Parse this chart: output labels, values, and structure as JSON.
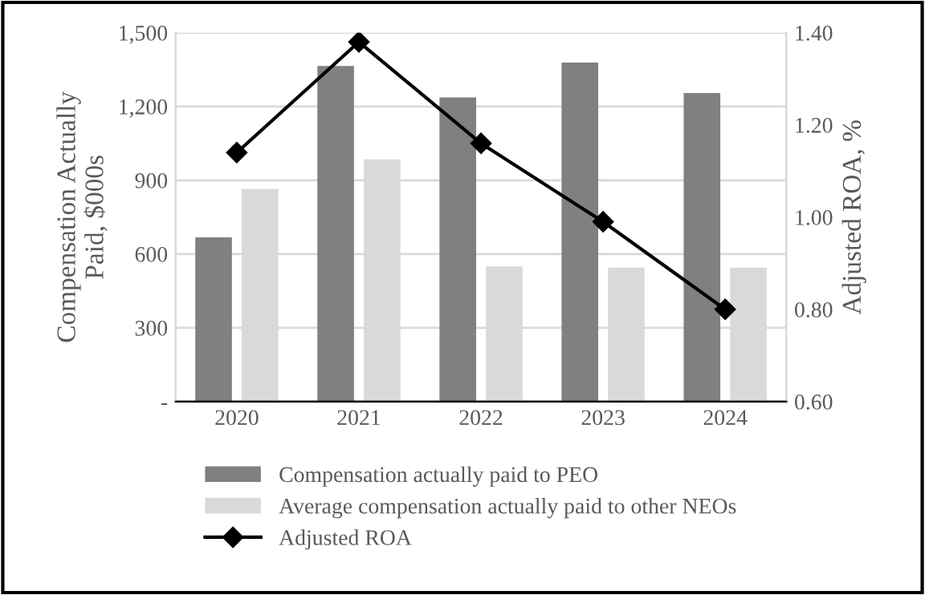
{
  "chart_data": {
    "type": "bar",
    "categories": [
      "2020",
      "2021",
      "2022",
      "2023",
      "2024"
    ],
    "ylabel": "Compensation Actually\nPaid, $000s",
    "y2label": "Adjusted ROA, %",
    "ylim": [
      0,
      1500
    ],
    "yticks": [
      {
        "value": 0,
        "label": "-"
      },
      {
        "value": 300,
        "label": "300"
      },
      {
        "value": 600,
        "label": "600"
      },
      {
        "value": 900,
        "label": "900"
      },
      {
        "value": 1200,
        "label": "1,200"
      },
      {
        "value": 1500,
        "label": "1,500"
      }
    ],
    "y2lim": [
      0.6,
      1.4
    ],
    "y2ticks": [
      {
        "value": 0.6,
        "label": "0.60"
      },
      {
        "value": 0.8,
        "label": "0.80"
      },
      {
        "value": 1.0,
        "label": "1.00"
      },
      {
        "value": 1.2,
        "label": "1.20"
      },
      {
        "value": 1.4,
        "label": "1.40"
      }
    ],
    "grid": "y",
    "legend": "bottom",
    "marker": "diamond",
    "series": [
      {
        "name": "Compensation actually paid to PEO",
        "color": "#808080",
        "values": [
          668,
          1365,
          1237,
          1379,
          1255
        ]
      },
      {
        "name": "Average compensation actually paid to other NEOs",
        "color": "#d9d9d9",
        "values": [
          864,
          985,
          550,
          545,
          545
        ]
      },
      {
        "name": "Adjusted ROA",
        "type": "line",
        "axis": "y2",
        "color": "#000000",
        "values": [
          1.14,
          1.38,
          1.16,
          0.99,
          0.8
        ]
      }
    ]
  }
}
